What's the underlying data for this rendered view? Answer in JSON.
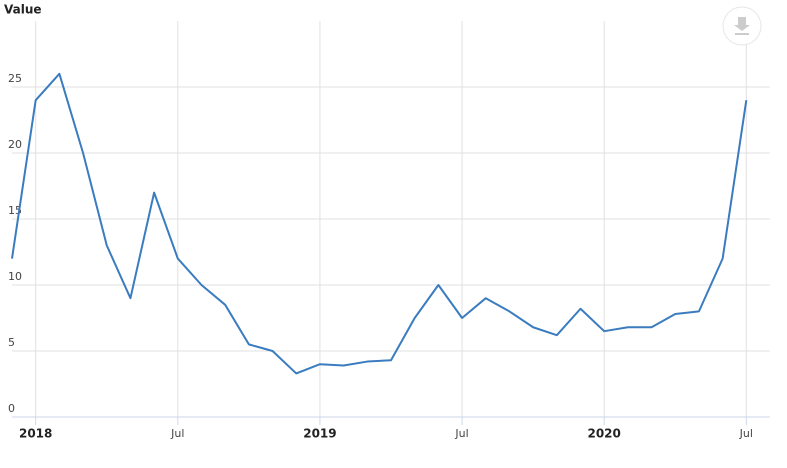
{
  "chart_data": {
    "type": "line",
    "y_axis_title": "Value",
    "x": [
      "2017-12",
      "2018-01",
      "2018-02",
      "2018-03",
      "2018-04",
      "2018-05",
      "2018-06",
      "2018-07",
      "2018-08",
      "2018-09",
      "2018-10",
      "2018-11",
      "2018-12",
      "2019-01",
      "2019-02",
      "2019-03",
      "2019-04",
      "2019-05",
      "2019-06",
      "2019-07",
      "2019-08",
      "2019-09",
      "2019-10",
      "2019-11",
      "2019-12",
      "2020-01",
      "2020-02",
      "2020-03",
      "2020-04",
      "2020-05",
      "2020-06",
      "2020-07"
    ],
    "series": [
      {
        "name": "Value",
        "color": "#3a7cbf",
        "values": [
          12,
          24,
          26,
          20,
          13,
          9,
          17,
          12,
          10,
          8.5,
          5.5,
          5,
          3.3,
          4,
          3.9,
          4.2,
          4.3,
          7.5,
          10,
          7.5,
          9,
          8,
          6.8,
          6.2,
          8.2,
          6.5,
          6.8,
          6.8,
          7.8,
          8,
          12,
          24
        ]
      }
    ],
    "xlim": [
      "2017-12",
      "2020-08"
    ],
    "xticks": [
      {
        "value": "2018-01",
        "label": "2018"
      },
      {
        "value": "2018-07",
        "label": "Jul"
      },
      {
        "value": "2019-01",
        "label": "2019"
      },
      {
        "value": "2019-07",
        "label": "Jul"
      },
      {
        "value": "2020-01",
        "label": "2020"
      },
      {
        "value": "2020-07",
        "label": "Jul"
      }
    ],
    "ylim": [
      0,
      30
    ],
    "yticks": [
      0,
      5,
      10,
      15,
      20,
      25
    ],
    "grid": true
  }
}
